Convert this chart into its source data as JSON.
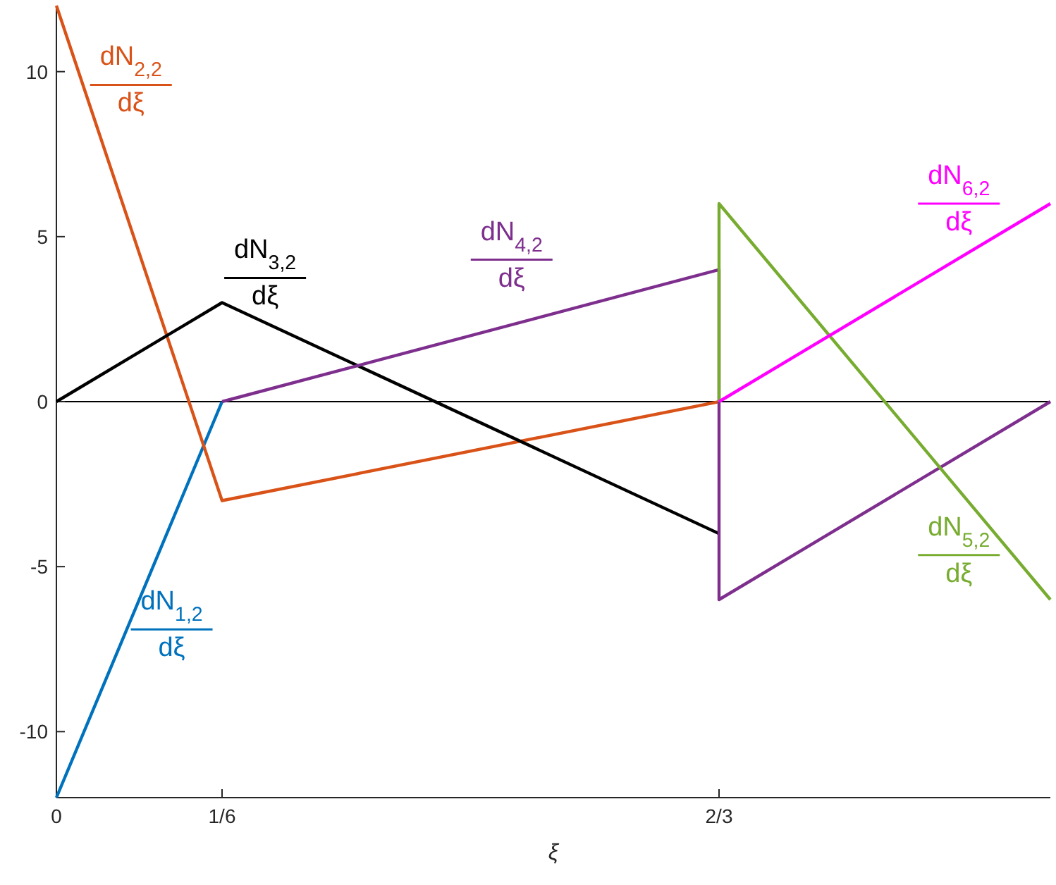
{
  "chart_data": {
    "type": "line",
    "xlabel": "ξ",
    "xlim": [
      0,
      1
    ],
    "ylim": [
      -12,
      12
    ],
    "xticks": [
      0,
      {
        "value": 0.1666667,
        "label": "1/6"
      },
      {
        "value": 0.6666667,
        "label": "2/3"
      }
    ],
    "yticks": [
      -10,
      -5,
      0,
      5,
      10
    ],
    "grid": false,
    "ref_lines": [
      {
        "axis": "y",
        "value": 0,
        "color": "#000000"
      }
    ],
    "series": [
      {
        "name": "dN$_{1,2}$ dξ",
        "color": "#0072bd",
        "x": [
          0,
          0.1666667
        ],
        "values": [
          -12,
          0
        ]
      },
      {
        "name": "dN$_{2,2}$ dξ",
        "color": "#d95319",
        "x": [
          0,
          0.1666667,
          0.6666667
        ],
        "values": [
          12,
          -3,
          0
        ]
      },
      {
        "name": "dN$_{3,2}$ dξ",
        "color": "#000000",
        "x": [
          0,
          0.1666667,
          0.6666667
        ],
        "values": [
          0,
          3,
          -4
        ]
      },
      {
        "name": "dN$_{4,2}$ dξ",
        "color": "#7e2f8e",
        "x": [
          0.1666667,
          0.6666667,
          0.6666667,
          1
        ],
        "values": [
          0,
          4,
          -6,
          0
        ]
      },
      {
        "name": "dN$_{5,2}$ dξ",
        "color": "#77ac30",
        "x": [
          0.6666667,
          0.6666667,
          1
        ],
        "values": [
          0,
          6,
          -6
        ]
      },
      {
        "name": "dN$_{6,2}$ dξ",
        "color": "#ff00ff",
        "x": [
          0.6666667,
          1
        ],
        "values": [
          0,
          6
        ]
      }
    ]
  }
}
